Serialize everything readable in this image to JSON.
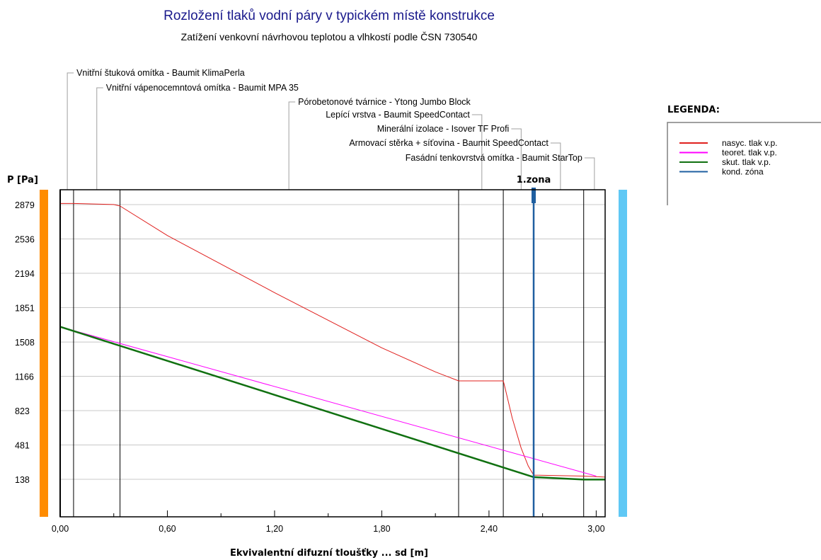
{
  "chart_data": {
    "type": "line",
    "title": "Rozložení tlaků vodní páry v typickém místě konstrukce",
    "subtitle": "Zatížení venkovní návrhovou teplotou a vlhkostí podle ČSN 730540",
    "xlabel": "Ekvivalentní difuzní tloušťky ... sd [m]",
    "ylabel": "P [Pa]",
    "xlim": [
      0,
      3.05
    ],
    "ylim": [
      -200,
      3100
    ],
    "x_ticks": [
      0,
      0.6,
      1.2,
      1.8,
      2.4,
      3.0
    ],
    "x_tick_labels": [
      "0,00",
      "0,60",
      "1,20",
      "1,80",
      "2,40",
      "3,00"
    ],
    "y_ticks": [
      2879,
      2536,
      2194,
      1851,
      1508,
      1166,
      823,
      481,
      138
    ],
    "y_tick_labels": [
      "2879",
      "2536",
      "2194",
      "1851",
      "1508",
      "1166",
      "823",
      "481",
      "138"
    ],
    "x_minor_ticks": [
      0.3,
      0.9,
      1.5,
      2.1,
      2.7
    ],
    "layer_boundaries": [
      0,
      0.075,
      0.335,
      2.23,
      2.48,
      2.93,
      3.05
    ],
    "layers": [
      {
        "name": "Vnitřní štuková omítka - Baumit KlimaPerla",
        "x": 0.04
      },
      {
        "name": "Vnitřní vápenocemntová omítka - Baumit MPA 35",
        "x": 0.205
      },
      {
        "name": "Pórobetonové tvárnice - Ytong Jumbo Block",
        "x": 1.28
      },
      {
        "name": "Lepící vrstva - Baumit SpeedContact",
        "x": 2.36
      },
      {
        "name": "Minerální izolace - Isover TF Profi",
        "x": 2.58
      },
      {
        "name": "Armovací stěrka + síťovina - Baumit SpeedContact",
        "x": 2.8
      },
      {
        "name": "Fasádní tenkovrstvá omítka - Baumit StarTop",
        "x": 2.99
      }
    ],
    "zone": {
      "label": "1.zona",
      "x": 2.65
    },
    "series": [
      {
        "name": "nasyc. tlak v.p.",
        "color": "#e0201e",
        "points": [
          [
            0,
            2890
          ],
          [
            0.075,
            2890
          ],
          [
            0.3,
            2880
          ],
          [
            0.335,
            2865
          ],
          [
            0.6,
            2570
          ],
          [
            1.2,
            2000
          ],
          [
            1.8,
            1450
          ],
          [
            2.1,
            1210
          ],
          [
            2.23,
            1120
          ],
          [
            2.48,
            1120
          ],
          [
            2.49,
            1050
          ],
          [
            2.53,
            750
          ],
          [
            2.58,
            450
          ],
          [
            2.62,
            270
          ],
          [
            2.65,
            180
          ],
          [
            2.93,
            170
          ],
          [
            3.05,
            160
          ]
        ]
      },
      {
        "name": "teoret. tlak v.p.",
        "color": "#ff00ff",
        "points": [
          [
            0,
            1660
          ],
          [
            3.0,
            170
          ]
        ]
      },
      {
        "name": "skut. tlak v.p.",
        "color": "#107010",
        "points": [
          [
            0,
            1660
          ],
          [
            2.65,
            160
          ],
          [
            2.93,
            135
          ],
          [
            3.05,
            135
          ]
        ]
      },
      {
        "name": "kond. zóna",
        "color": "#1f5fa0",
        "points": []
      }
    ]
  },
  "legend": {
    "title": "LEGENDA:",
    "items": [
      {
        "label": "nasyc. tlak v.p.",
        "color": "#e0201e"
      },
      {
        "label": "teoret. tlak v.p.",
        "color": "#ff00ff"
      },
      {
        "label": "skut. tlak v.p.",
        "color": "#107010"
      },
      {
        "label": "kond. zóna",
        "color": "#1f5fa0"
      }
    ]
  },
  "side_bars": {
    "interior_color": "#ff8c00",
    "exterior_color": "#5fc8f5"
  }
}
